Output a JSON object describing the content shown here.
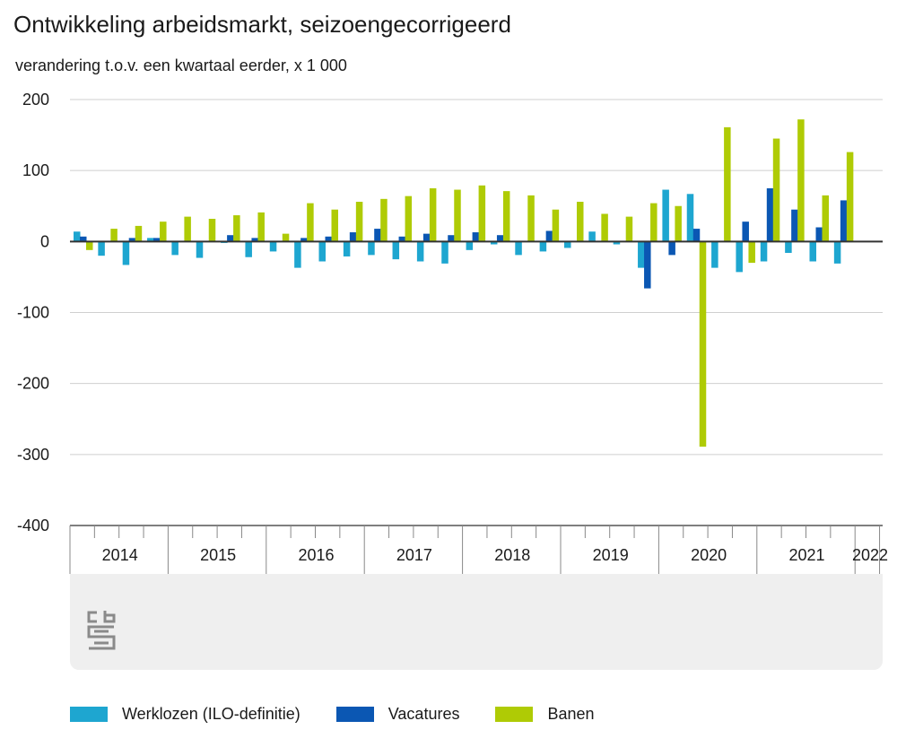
{
  "title": "Ontwikkeling arbeidsmarkt, seizoengecorrigeerd",
  "subtitle": "verandering t.o.v. een kwartaal eerder, x 1 000",
  "colors": {
    "werklozen": "#1ea6d0",
    "vacatures": "#0b57b3",
    "banen": "#afcb05"
  },
  "chart_data": {
    "type": "bar",
    "title": "Ontwikkeling arbeidsmarkt, seizoengecorrigeerd",
    "subtitle": "verandering t.o.v. een kwartaal eerder, x 1 000",
    "ylim": [
      -400,
      200
    ],
    "yticks": [
      200,
      100,
      0,
      -100,
      -200,
      -300,
      -400
    ],
    "grid": true,
    "legend_position": "bottom",
    "years": [
      "2014",
      "2015",
      "2016",
      "2017",
      "2018",
      "2019",
      "2020",
      "2021",
      "2022"
    ],
    "categories": [
      "2014 Q1",
      "2014 Q2",
      "2014 Q3",
      "2014 Q4",
      "2015 Q1",
      "2015 Q2",
      "2015 Q3",
      "2015 Q4",
      "2016 Q1",
      "2016 Q2",
      "2016 Q3",
      "2016 Q4",
      "2017 Q1",
      "2017 Q2",
      "2017 Q3",
      "2017 Q4",
      "2018 Q1",
      "2018 Q2",
      "2018 Q3",
      "2018 Q4",
      "2019 Q1",
      "2019 Q2",
      "2019 Q3",
      "2019 Q4",
      "2020 Q1",
      "2020 Q2",
      "2020 Q3",
      "2020 Q4",
      "2021 Q1",
      "2021 Q2",
      "2021 Q3",
      "2021 Q4",
      "2022 Q1"
    ],
    "series": [
      {
        "name": "Werklozen (ILO-definitie)",
        "values": [
          14,
          -20,
          -33,
          5,
          -19,
          -23,
          -2,
          -22,
          -14,
          -37,
          -28,
          -21,
          -19,
          -25,
          -28,
          -31,
          -12,
          -4,
          -19,
          -14,
          -9,
          14,
          -4,
          -37,
          73,
          67,
          -37,
          -43,
          -28,
          -16,
          -28,
          -31,
          0
        ]
      },
      {
        "name": "Vacatures",
        "values": [
          7,
          0,
          5,
          5,
          0,
          0,
          9,
          5,
          0,
          5,
          7,
          13,
          18,
          7,
          11,
          9,
          13,
          9,
          0,
          15,
          0,
          0,
          0,
          -66,
          -19,
          18,
          0,
          28,
          75,
          45,
          20,
          58,
          0
        ]
      },
      {
        "name": "Banen",
        "values": [
          -12,
          18,
          22,
          28,
          35,
          32,
          37,
          41,
          11,
          54,
          45,
          56,
          60,
          64,
          75,
          73,
          79,
          71,
          65,
          45,
          56,
          39,
          35,
          54,
          50,
          -289,
          161,
          -30,
          145,
          172,
          65,
          126,
          0
        ]
      }
    ]
  },
  "legend": [
    {
      "label": "Werklozen (ILO-definitie)",
      "color": "#1ea6d0"
    },
    {
      "label": "Vacatures",
      "color": "#0b57b3"
    },
    {
      "label": "Banen",
      "color": "#afcb05"
    }
  ]
}
